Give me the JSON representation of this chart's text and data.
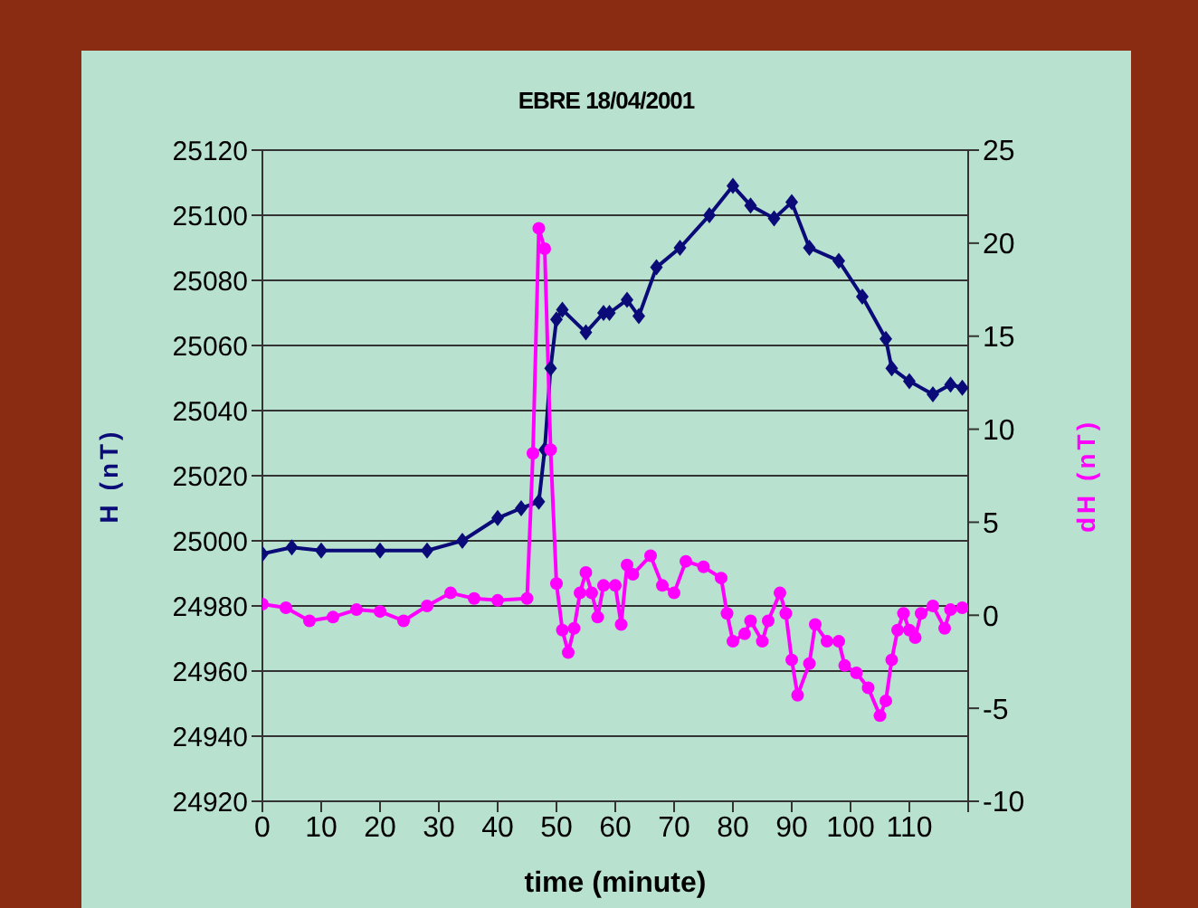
{
  "chart_data": {
    "type": "line",
    "title": "EBRE 18/04/2001",
    "xlabel": "time (minute)",
    "ylabel": "H (nT)",
    "y2label": "dH (nT)",
    "xlim": [
      0,
      120
    ],
    "xticks": [
      0,
      10,
      20,
      30,
      40,
      50,
      60,
      70,
      80,
      90,
      100,
      110,
      {
        "value": 120,
        "label": null
      }
    ],
    "ylim": [
      24920,
      25120
    ],
    "yticks": [
      24920,
      24940,
      24960,
      24980,
      25000,
      25020,
      25040,
      25060,
      25080,
      25100,
      25120
    ],
    "y2lim": [
      -10,
      25
    ],
    "y2ticks": [
      -10,
      -5,
      0,
      5,
      10,
      15,
      20,
      25
    ],
    "grid": "y",
    "legend": false,
    "series": [
      {
        "color": "#0a0a78",
        "marker": "diamond",
        "x": [
          0,
          5,
          10,
          20,
          28,
          34,
          40,
          44,
          47,
          48,
          49,
          50,
          51,
          55,
          58,
          59,
          62,
          64,
          67,
          71,
          76,
          80,
          83,
          87,
          90,
          93,
          98,
          102,
          106,
          107,
          110,
          114,
          117,
          119
        ],
        "values": [
          24996,
          24998,
          24997,
          24997,
          24997,
          25000,
          25007,
          25010,
          25012,
          25028,
          25053,
          25068,
          25071,
          25064,
          25070,
          25070,
          25074,
          25069,
          25084,
          25090,
          25100,
          25109,
          25103,
          25099,
          25104,
          25090,
          25086,
          25075,
          25062,
          25053,
          25049,
          25045,
          25048,
          25047
        ]
      },
      {
        "color": "#ff00ff",
        "marker": "circle",
        "axis": "y2",
        "x": [
          0,
          4,
          8,
          12,
          16,
          20,
          24,
          28,
          32,
          36,
          40,
          45,
          46,
          47,
          48,
          49,
          50,
          51,
          52,
          53,
          54,
          55,
          56,
          57,
          58,
          60,
          61,
          62,
          63,
          66,
          68,
          70,
          72,
          75,
          78,
          79,
          80,
          82,
          83,
          85,
          86,
          88,
          89,
          90,
          91,
          93,
          94,
          96,
          98,
          99,
          101,
          103,
          105,
          106,
          107,
          108,
          109,
          110,
          111,
          112,
          114,
          116,
          117,
          119
        ],
        "values": [
          0.6,
          0.4,
          -0.3,
          -0.1,
          0.3,
          0.2,
          -0.3,
          0.5,
          1.2,
          0.9,
          0.8,
          0.9,
          8.7,
          20.8,
          19.7,
          8.9,
          1.7,
          -0.8,
          -2,
          -0.7,
          1.2,
          2.3,
          1.2,
          -0.1,
          1.6,
          1.6,
          -0.5,
          2.7,
          2.2,
          3.2,
          1.6,
          1.2,
          2.9,
          2.6,
          2,
          0.1,
          -1.4,
          -1,
          -0.3,
          -1.4,
          -0.3,
          1.2,
          0.1,
          -2.4,
          -4.3,
          -2.6,
          -0.5,
          -1.4,
          -1.4,
          -2.7,
          -3.1,
          -3.9,
          -5.4,
          -4.6,
          -2.4,
          -0.8,
          0.1,
          -0.8,
          -1.2,
          0.1,
          0.5,
          -0.7,
          0.3,
          0.4
        ]
      }
    ]
  }
}
